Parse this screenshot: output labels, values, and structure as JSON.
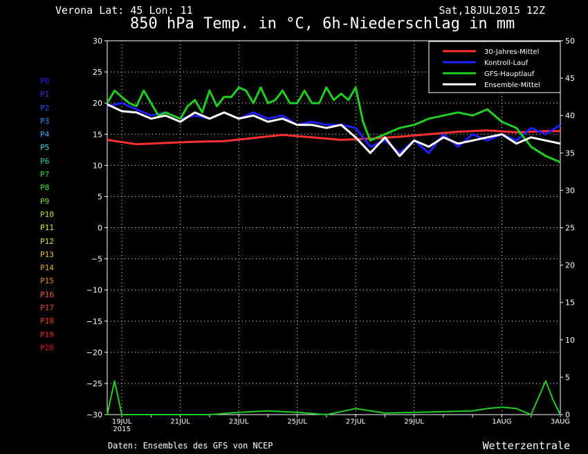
{
  "header": {
    "location": "Verona   Lat: 45 Lon: 11",
    "datetime": "Sat,18JUL2015 12Z",
    "title": "850 hPa Temp. in °C, 6h-Niederschlag in mm"
  },
  "footer": {
    "source": "Daten: Ensembles des GFS von NCEP",
    "brand": "Wetterzentrale"
  },
  "members": [
    {
      "label": "P0",
      "color": "#2020ff"
    },
    {
      "label": "P1",
      "color": "#2030ff"
    },
    {
      "label": "P2",
      "color": "#2050ff"
    },
    {
      "label": "P3",
      "color": "#2090ff"
    },
    {
      "label": "P4",
      "color": "#30b0ff"
    },
    {
      "label": "P5",
      "color": "#30d8e8"
    },
    {
      "label": "P6",
      "color": "#20d890"
    },
    {
      "label": "P7",
      "color": "#20e040"
    },
    {
      "label": "P8",
      "color": "#40e030"
    },
    {
      "label": "P9",
      "color": "#80e020"
    },
    {
      "label": "P10",
      "color": "#b0e820"
    },
    {
      "label": "P11",
      "color": "#e0f020"
    },
    {
      "label": "P12",
      "color": "#f0e020"
    },
    {
      "label": "P13",
      "color": "#f0c020"
    },
    {
      "label": "P14",
      "color": "#f0a020"
    },
    {
      "label": "P15",
      "color": "#f08020"
    },
    {
      "label": "P16",
      "color": "#f06020"
    },
    {
      "label": "P17",
      "color": "#f04020"
    },
    {
      "label": "P18",
      "color": "#f03020"
    },
    {
      "label": "P19",
      "color": "#f02020"
    },
    {
      "label": "P20",
      "color": "#e01010"
    }
  ],
  "chart_data": {
    "type": "line",
    "title": "850 hPa Temp. in °C, 6h-Niederschlag in mm",
    "x_range_days": [
      18.5,
      34
    ],
    "ylim_left": [
      -30,
      30
    ],
    "ylim_right": [
      0,
      50
    ],
    "yticks_left": [
      -30,
      -25,
      -20,
      -15,
      -10,
      -5,
      0,
      5,
      10,
      15,
      20,
      25,
      30
    ],
    "yticks_right": [
      0,
      5,
      10,
      15,
      20,
      25,
      30,
      35,
      40,
      45,
      50
    ],
    "xticks": [
      {
        "day": 19,
        "label": "19JUL",
        "sub": "2015"
      },
      {
        "day": 21,
        "label": "21JUL",
        "sub": ""
      },
      {
        "day": 23,
        "label": "23JUL",
        "sub": ""
      },
      {
        "day": 25,
        "label": "25JUL",
        "sub": ""
      },
      {
        "day": 27,
        "label": "27JUL",
        "sub": ""
      },
      {
        "day": 29,
        "label": "29JUL",
        "sub": ""
      },
      {
        "day": 32,
        "label": "1AUG",
        "sub": ""
      },
      {
        "day": 34,
        "label": "3AUG",
        "sub": ""
      }
    ],
    "grid": true,
    "legend_position": "top-right",
    "series": [
      {
        "name": "30-Jahres-Mittel",
        "color": "#ff3030",
        "axis": "left",
        "x": [
          18.5,
          19.5,
          20.5,
          21.5,
          22.5,
          23.5,
          24.5,
          25.5,
          26.5,
          27.5,
          28.5,
          29.5,
          30.5,
          31.5,
          32.5,
          33.5,
          34
        ],
        "y": [
          14.1,
          13.4,
          13.6,
          13.8,
          13.9,
          14.4,
          14.9,
          14.5,
          14.1,
          14.3,
          14.6,
          15.0,
          15.4,
          15.6,
          15.3,
          15.5,
          15.5
        ]
      },
      {
        "name": "Kontroll-Lauf",
        "color": "#2020ff",
        "axis": "left",
        "x": [
          18.5,
          19,
          19.5,
          20,
          20.5,
          21,
          21.5,
          22,
          22.5,
          23,
          23.5,
          24,
          24.5,
          25,
          25.5,
          26,
          26.5,
          27,
          27.5,
          28,
          28.5,
          29,
          29.5,
          30,
          30.5,
          31,
          31.5,
          32,
          32.5,
          33,
          33.5,
          34
        ],
        "y": [
          19.5,
          20,
          19,
          18,
          18.5,
          17.5,
          18,
          17.5,
          18.5,
          17.5,
          18.5,
          17.5,
          18,
          16.5,
          17,
          16.5,
          16.5,
          16,
          13,
          14,
          12,
          14,
          12,
          15,
          13,
          15,
          14,
          15,
          14,
          16,
          15,
          16.5
        ]
      },
      {
        "name": "GFS-Hauptlauf",
        "color": "#20d020",
        "axis": "left",
        "x": [
          18.5,
          18.75,
          19,
          19.25,
          19.5,
          19.75,
          20,
          20.25,
          20.5,
          20.75,
          21,
          21.25,
          21.5,
          21.75,
          22,
          22.25,
          22.5,
          22.75,
          23,
          23.25,
          23.5,
          23.75,
          24,
          24.25,
          24.5,
          24.75,
          25,
          25.25,
          25.5,
          25.75,
          26,
          26.25,
          26.5,
          26.75,
          27,
          27.25,
          27.5,
          28,
          28.5,
          29,
          29.5,
          30,
          30.5,
          31,
          31.5,
          32,
          32.5,
          33,
          33.5,
          34
        ],
        "y": [
          20,
          22,
          21,
          20,
          19.5,
          22,
          20,
          18,
          18.5,
          18,
          17.5,
          19.5,
          20.5,
          18.5,
          22,
          19.5,
          21,
          21,
          22.5,
          22,
          20,
          22.5,
          20,
          20.5,
          22,
          20,
          20,
          22,
          20,
          20,
          22.5,
          20.5,
          21.5,
          20.5,
          22.5,
          17,
          14,
          15,
          16,
          16.5,
          17.5,
          18,
          18.5,
          18,
          19,
          17,
          16,
          13,
          11.5,
          10.5
        ]
      },
      {
        "name": "Ensemble-Mittel",
        "color": "#ffffff",
        "axis": "left",
        "x": [
          18.5,
          19,
          19.5,
          20,
          20.5,
          21,
          21.5,
          22,
          22.5,
          23,
          23.5,
          24,
          24.5,
          25,
          25.5,
          26,
          26.5,
          27,
          27.5,
          28,
          28.5,
          29,
          29.5,
          30,
          30.5,
          31,
          31.5,
          32,
          32.5,
          33,
          33.5,
          34
        ],
        "y": [
          19.8,
          18.7,
          18.5,
          17.5,
          18,
          17,
          18.5,
          17.5,
          18.5,
          17.5,
          18,
          17,
          17.5,
          16.5,
          16.5,
          16,
          16.5,
          14.5,
          12,
          14.5,
          11.5,
          14,
          13,
          14.5,
          13.5,
          14,
          14.5,
          15,
          13.5,
          14.5,
          14,
          13.5
        ]
      },
      {
        "name": "GFS-Hauptlauf Niederschlag",
        "color": "#20d020",
        "axis": "right",
        "x": [
          18.5,
          18.75,
          19,
          19.25,
          19.5,
          20,
          21,
          22,
          23,
          24,
          25,
          26,
          27,
          28,
          29,
          30,
          31,
          31.5,
          32,
          32.5,
          33,
          33.5,
          33.75,
          34
        ],
        "y": [
          0,
          4.5,
          0,
          0,
          0,
          0,
          0,
          0,
          0.3,
          0.5,
          0.3,
          0,
          0.8,
          0.2,
          0.3,
          0.4,
          0.5,
          0.8,
          1,
          0.8,
          0,
          4.5,
          2,
          0
        ]
      }
    ]
  }
}
